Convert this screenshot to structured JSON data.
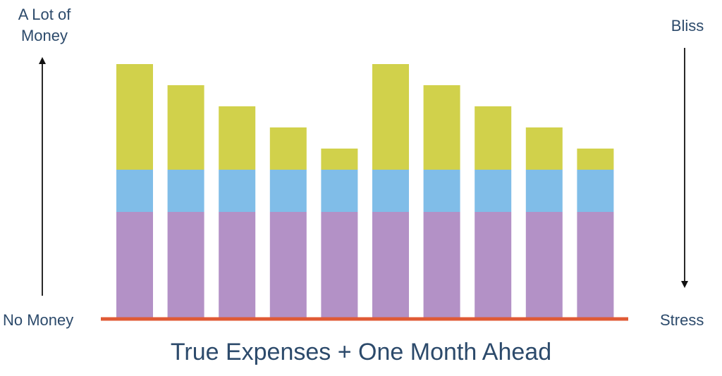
{
  "chart_data": {
    "type": "bar",
    "stacked": true,
    "title": "True Expenses + One Month Ahead",
    "left_axis": {
      "top_label": "A Lot of Money",
      "bottom_label": "No Money",
      "direction": "up"
    },
    "right_axis": {
      "top_label": "Bliss",
      "bottom_label": "Stress",
      "direction": "down"
    },
    "categories": [
      "",
      "",
      "",
      "",
      "",
      "",
      "",
      "",
      "",
      ""
    ],
    "series": [
      {
        "color": "#b391c6",
        "values": [
          50,
          50,
          50,
          50,
          50,
          50,
          50,
          50,
          50,
          50
        ]
      },
      {
        "color": "#80bde8",
        "values": [
          20,
          20,
          20,
          20,
          20,
          20,
          20,
          20,
          20,
          20
        ]
      },
      {
        "color": "#d1d14b",
        "values": [
          50,
          40,
          30,
          20,
          10,
          50,
          40,
          30,
          20,
          10
        ]
      }
    ],
    "ylim": [
      0,
      120
    ],
    "baseline_color": "#e05a35",
    "grid": false,
    "legend": "none"
  }
}
